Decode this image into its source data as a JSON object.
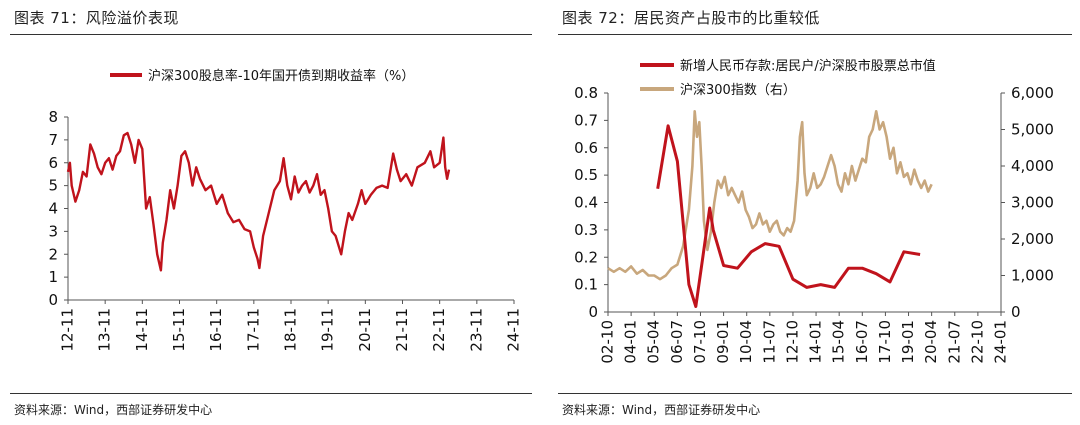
{
  "left": {
    "caption": "图表 71：风险溢价表现",
    "source": "资料来源：Wind，西部证券研发中心"
  },
  "right": {
    "caption": "图表 72：居民资产占股市的比重较低",
    "source": "资料来源：Wind，西部证券研发中心"
  },
  "colors": {
    "red": "#c0131c",
    "tan": "#c8a77d",
    "axis": "#555555"
  },
  "chart_data": [
    {
      "type": "line",
      "title": "",
      "legend": [
        "沪深300股息率-10年国开债到期收益率（%）"
      ],
      "xlabel": "",
      "ylabel": "",
      "x_ticks": [
        "12-11",
        "13-11",
        "14-11",
        "15-11",
        "16-11",
        "17-11",
        "18-11",
        "19-11",
        "20-11",
        "21-11",
        "22-11",
        "23-11",
        "24-11"
      ],
      "ylim": [
        0,
        8
      ],
      "y_ticks": [
        "0",
        "1",
        "2",
        "3",
        "4",
        "5",
        "6",
        "7",
        "8"
      ],
      "series": [
        {
          "name": "沪深300股息率-10年国开债到期收益率（%）",
          "points": [
            [
              0.0,
              5.6
            ],
            [
              0.05,
              6.0
            ],
            [
              0.1,
              5.0
            ],
            [
              0.2,
              4.3
            ],
            [
              0.3,
              4.8
            ],
            [
              0.4,
              5.6
            ],
            [
              0.5,
              5.4
            ],
            [
              0.6,
              6.8
            ],
            [
              0.7,
              6.4
            ],
            [
              0.8,
              5.8
            ],
            [
              0.9,
              5.5
            ],
            [
              1.0,
              6.0
            ],
            [
              1.1,
              6.2
            ],
            [
              1.2,
              5.7
            ],
            [
              1.3,
              6.3
            ],
            [
              1.4,
              6.5
            ],
            [
              1.5,
              7.2
            ],
            [
              1.6,
              7.3
            ],
            [
              1.7,
              6.8
            ],
            [
              1.8,
              6.0
            ],
            [
              1.9,
              7.0
            ],
            [
              2.0,
              6.6
            ],
            [
              2.1,
              4.0
            ],
            [
              2.2,
              4.5
            ],
            [
              2.3,
              3.3
            ],
            [
              2.4,
              2.0
            ],
            [
              2.5,
              1.3
            ],
            [
              2.55,
              2.5
            ],
            [
              2.65,
              3.5
            ],
            [
              2.75,
              4.8
            ],
            [
              2.85,
              4.0
            ],
            [
              2.95,
              5.0
            ],
            [
              3.05,
              6.3
            ],
            [
              3.15,
              6.5
            ],
            [
              3.25,
              6.0
            ],
            [
              3.35,
              5.0
            ],
            [
              3.45,
              5.8
            ],
            [
              3.55,
              5.3
            ],
            [
              3.7,
              4.8
            ],
            [
              3.85,
              5.0
            ],
            [
              4.0,
              4.2
            ],
            [
              4.15,
              4.6
            ],
            [
              4.3,
              3.8
            ],
            [
              4.45,
              3.4
            ],
            [
              4.6,
              3.5
            ],
            [
              4.75,
              3.1
            ],
            [
              4.9,
              3.0
            ],
            [
              5.0,
              2.3
            ],
            [
              5.1,
              1.8
            ],
            [
              5.15,
              1.4
            ],
            [
              5.25,
              2.8
            ],
            [
              5.4,
              3.8
            ],
            [
              5.55,
              4.8
            ],
            [
              5.7,
              5.2
            ],
            [
              5.8,
              6.2
            ],
            [
              5.9,
              5.0
            ],
            [
              6.0,
              4.4
            ],
            [
              6.1,
              5.4
            ],
            [
              6.2,
              4.7
            ],
            [
              6.3,
              5.0
            ],
            [
              6.4,
              5.2
            ],
            [
              6.5,
              4.7
            ],
            [
              6.6,
              5.0
            ],
            [
              6.7,
              5.5
            ],
            [
              6.8,
              4.6
            ],
            [
              6.9,
              4.8
            ],
            [
              7.0,
              4.0
            ],
            [
              7.1,
              3.0
            ],
            [
              7.2,
              2.8
            ],
            [
              7.35,
              2.0
            ],
            [
              7.45,
              3.0
            ],
            [
              7.55,
              3.8
            ],
            [
              7.65,
              3.5
            ],
            [
              7.8,
              4.2
            ],
            [
              7.9,
              4.8
            ],
            [
              8.0,
              4.2
            ],
            [
              8.15,
              4.6
            ],
            [
              8.3,
              4.9
            ],
            [
              8.45,
              5.0
            ],
            [
              8.6,
              4.9
            ],
            [
              8.75,
              6.4
            ],
            [
              8.85,
              5.7
            ],
            [
              8.95,
              5.2
            ],
            [
              9.1,
              5.5
            ],
            [
              9.25,
              5.0
            ],
            [
              9.4,
              5.8
            ],
            [
              9.6,
              6.0
            ],
            [
              9.75,
              6.5
            ],
            [
              9.85,
              5.8
            ],
            [
              10.0,
              6.0
            ],
            [
              10.1,
              7.1
            ],
            [
              10.15,
              5.8
            ],
            [
              10.2,
              5.3
            ],
            [
              10.25,
              5.7
            ]
          ]
        }
      ]
    },
    {
      "type": "line",
      "title": "",
      "xlabel": "",
      "ylabel": "",
      "x_ticks": [
        "02-10",
        "04-01",
        "05-04",
        "06-07",
        "07-10",
        "09-01",
        "10-04",
        "11-07",
        "12-10",
        "14-01",
        "15-04",
        "16-07",
        "17-10",
        "19-01",
        "20-04",
        "21-07",
        "22-10",
        "24-01"
      ],
      "ylim_left": [
        0,
        0.8
      ],
      "y_ticks_left": [
        "0",
        "0.1",
        "0.2",
        "0.3",
        "0.4",
        "0.5",
        "0.6",
        "0.7",
        "0.8"
      ],
      "ylim_right": [
        0,
        6000
      ],
      "y_ticks_right": [
        "0",
        "1,000",
        "2,000",
        "3,000",
        "4,000",
        "5,000",
        "6,000"
      ],
      "series": [
        {
          "name": "新增人民币存款:居民户/沪深股市股票总市值",
          "axis": "left",
          "points": [
            [
              2.15,
              0.45
            ],
            [
              2.6,
              0.68
            ],
            [
              3.0,
              0.55
            ],
            [
              3.5,
              0.1
            ],
            [
              3.8,
              0.02
            ],
            [
              4.1,
              0.2
            ],
            [
              4.4,
              0.38
            ],
            [
              4.55,
              0.3
            ],
            [
              5.0,
              0.17
            ],
            [
              5.6,
              0.16
            ],
            [
              6.2,
              0.22
            ],
            [
              6.8,
              0.25
            ],
            [
              7.4,
              0.24
            ],
            [
              8.0,
              0.12
            ],
            [
              8.6,
              0.09
            ],
            [
              9.2,
              0.1
            ],
            [
              9.8,
              0.09
            ],
            [
              10.4,
              0.16
            ],
            [
              11.0,
              0.16
            ],
            [
              11.6,
              0.14
            ],
            [
              12.2,
              0.11
            ],
            [
              12.8,
              0.22
            ],
            [
              13.5,
              0.21
            ]
          ]
        },
        {
          "name": "沪深300指数（右）",
          "axis": "right",
          "points": [
            [
              0.0,
              1200
            ],
            [
              0.25,
              1100
            ],
            [
              0.5,
              1200
            ],
            [
              0.75,
              1100
            ],
            [
              1.0,
              1250
            ],
            [
              1.25,
              1050
            ],
            [
              1.5,
              1150
            ],
            [
              1.75,
              1000
            ],
            [
              2.0,
              1000
            ],
            [
              2.25,
              900
            ],
            [
              2.5,
              1000
            ],
            [
              2.75,
              1200
            ],
            [
              3.0,
              1300
            ],
            [
              3.25,
              1800
            ],
            [
              3.5,
              2800
            ],
            [
              3.65,
              4000
            ],
            [
              3.75,
              5500
            ],
            [
              3.85,
              4800
            ],
            [
              3.95,
              5200
            ],
            [
              4.05,
              4000
            ],
            [
              4.15,
              2500
            ],
            [
              4.3,
              1700
            ],
            [
              4.45,
              2200
            ],
            [
              4.6,
              3000
            ],
            [
              4.75,
              3600
            ],
            [
              4.9,
              3400
            ],
            [
              5.05,
              3700
            ],
            [
              5.2,
              3200
            ],
            [
              5.35,
              3400
            ],
            [
              5.5,
              3200
            ],
            [
              5.65,
              3000
            ],
            [
              5.8,
              3300
            ],
            [
              5.95,
              2800
            ],
            [
              6.1,
              2600
            ],
            [
              6.25,
              2300
            ],
            [
              6.4,
              2400
            ],
            [
              6.55,
              2700
            ],
            [
              6.7,
              2400
            ],
            [
              6.85,
              2500
            ],
            [
              7.0,
              2200
            ],
            [
              7.15,
              2400
            ],
            [
              7.3,
              2500
            ],
            [
              7.45,
              2200
            ],
            [
              7.6,
              2100
            ],
            [
              7.75,
              2300
            ],
            [
              7.9,
              2200
            ],
            [
              8.05,
              2500
            ],
            [
              8.2,
              3600
            ],
            [
              8.3,
              4800
            ],
            [
              8.4,
              5200
            ],
            [
              8.5,
              3800
            ],
            [
              8.6,
              3200
            ],
            [
              8.75,
              3400
            ],
            [
              8.9,
              3800
            ],
            [
              9.05,
              3400
            ],
            [
              9.2,
              3500
            ],
            [
              9.35,
              3700
            ],
            [
              9.5,
              4000
            ],
            [
              9.65,
              4300
            ],
            [
              9.8,
              4000
            ],
            [
              9.95,
              3500
            ],
            [
              10.1,
              3300
            ],
            [
              10.25,
              3800
            ],
            [
              10.4,
              3500
            ],
            [
              10.55,
              4000
            ],
            [
              10.7,
              3600
            ],
            [
              10.85,
              3900
            ],
            [
              11.0,
              4200
            ],
            [
              11.15,
              4100
            ],
            [
              11.3,
              4800
            ],
            [
              11.45,
              5000
            ],
            [
              11.6,
              5500
            ],
            [
              11.75,
              5000
            ],
            [
              11.9,
              5200
            ],
            [
              12.05,
              4800
            ],
            [
              12.2,
              4200
            ],
            [
              12.35,
              4500
            ],
            [
              12.5,
              3800
            ],
            [
              12.65,
              4100
            ],
            [
              12.8,
              3700
            ],
            [
              12.95,
              3800
            ],
            [
              13.1,
              3500
            ],
            [
              13.25,
              3900
            ],
            [
              13.4,
              3600
            ],
            [
              13.55,
              3400
            ],
            [
              13.7,
              3600
            ],
            [
              13.85,
              3300
            ],
            [
              14.0,
              3500
            ]
          ]
        }
      ]
    }
  ]
}
